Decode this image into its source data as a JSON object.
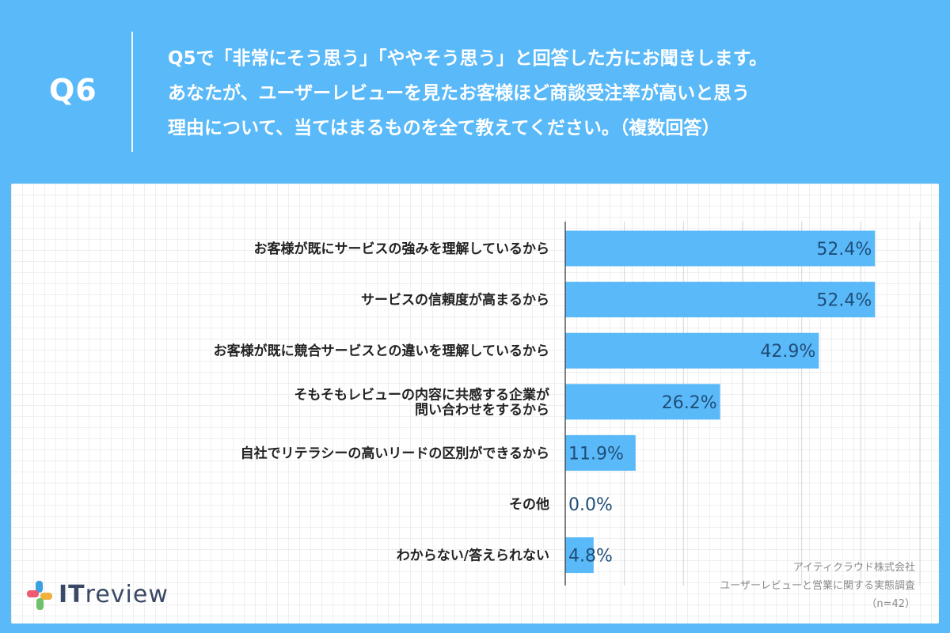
{
  "header": {
    "qnum": "Q6",
    "lines": [
      "Q5で「非常にそう思う」「ややそう思う」と回答した方にお聞きします。",
      "あなたが、ユーザーレビューを見たお客様ほど商談受注率が高いと思う",
      "理由について、当てはまるものを全て教えてください。（複数回答）"
    ]
  },
  "footnote": {
    "company": "アイティクラウド株式会社",
    "survey": "ユーザーレビューと営業に関する実態調査",
    "n": "（n=42）"
  },
  "logo": {
    "it": "IT",
    "rest": "review"
  },
  "colors": {
    "bar": "#5ab9f8",
    "value_text": "#1f4e79",
    "background": "#5ab9f8"
  },
  "chart_data": {
    "type": "bar",
    "orientation": "horizontal",
    "categories": [
      [
        "お客様が既にサービスの強みを理解しているから"
      ],
      [
        "サービスの信頼度が高まるから"
      ],
      [
        "お客様が既に競合サービスとの違いを理解しているから"
      ],
      [
        "そもそもレビューの内容に共感する企業が",
        "問い合わせをするから"
      ],
      [
        "自社でリテラシーの高いリードの区別ができるから"
      ],
      [
        "その他"
      ],
      [
        "わからない/答えられない"
      ]
    ],
    "values": [
      52.4,
      52.4,
      42.9,
      26.2,
      11.9,
      0.0,
      4.8
    ],
    "value_labels": [
      "52.4%",
      "52.4%",
      "42.9%",
      "26.2%",
      "11.9%",
      "0.0%",
      "4.8%"
    ],
    "xlim": [
      0,
      60
    ],
    "grid": true
  }
}
